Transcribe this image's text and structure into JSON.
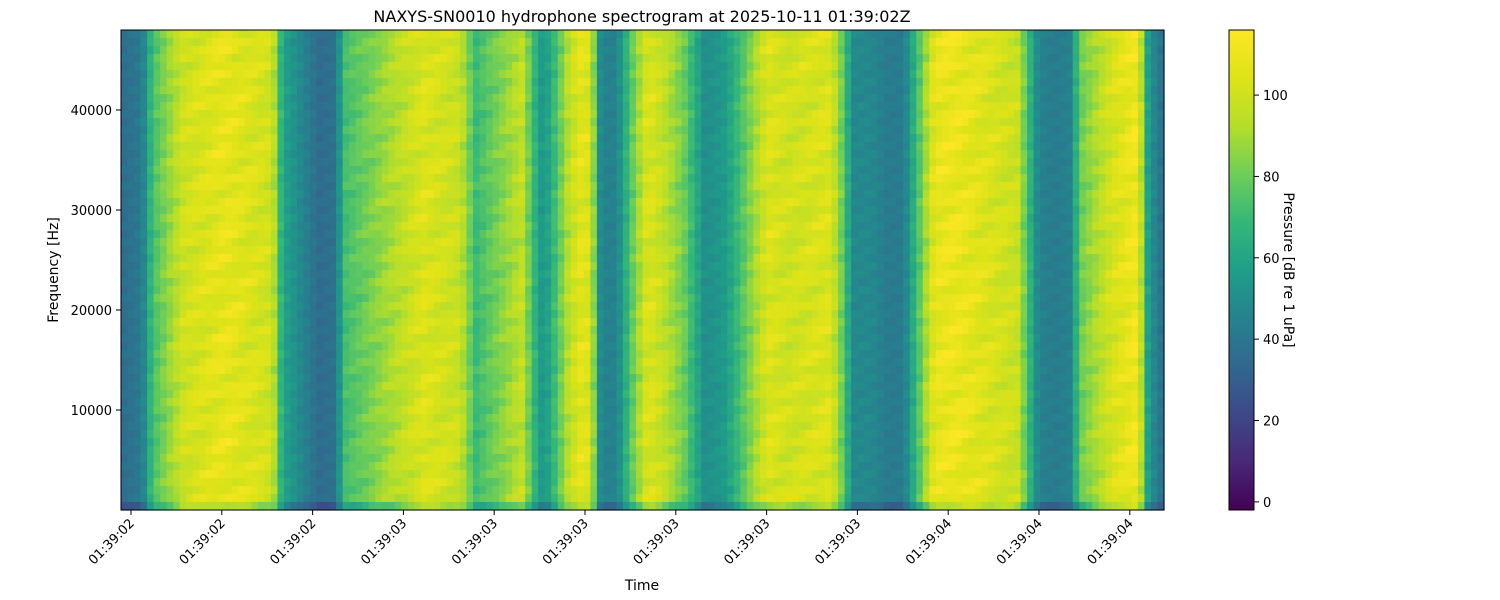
{
  "chart_data": {
    "type": "heatmap",
    "title": "NAXYS-SN0010 hydrophone spectrogram at 2025-10-11 01:39:02Z",
    "xlabel": "Time",
    "ylabel": "Frequency [Hz]",
    "colorbar_label": "Pressure [dB re 1 uPa]",
    "colormap": "viridis",
    "ylim": [
      0,
      48000
    ],
    "y_ticks": [
      10000,
      20000,
      30000,
      40000
    ],
    "x_tick_labels": [
      "01:39:02",
      "01:39:02",
      "01:39:02",
      "01:39:03",
      "01:39:03",
      "01:39:03",
      "01:39:03",
      "01:39:03",
      "01:39:03",
      "01:39:04",
      "01:39:04",
      "01:39:04"
    ],
    "clim": [
      -2,
      116
    ],
    "colorbar_ticks": [
      0,
      20,
      40,
      60,
      80,
      100
    ],
    "column_profile": {
      "description": "approximate mean level (dB) per time position, 0 = left edge, 1 = right edge",
      "t": [
        0.0,
        0.02,
        0.03,
        0.06,
        0.1,
        0.145,
        0.155,
        0.19,
        0.205,
        0.215,
        0.29,
        0.325,
        0.34,
        0.385,
        0.395,
        0.405,
        0.41,
        0.43,
        0.445,
        0.455,
        0.46,
        0.475,
        0.49,
        0.505,
        0.52,
        0.54,
        0.56,
        0.58,
        0.62,
        0.64,
        0.66,
        0.68,
        0.695,
        0.7,
        0.72,
        0.735,
        0.75,
        0.76,
        0.78,
        0.8,
        0.86,
        0.87,
        0.88,
        0.895,
        0.91,
        0.92,
        0.95,
        0.975,
        0.985,
        1.0
      ],
      "level": [
        35,
        42,
        72,
        100,
        108,
        100,
        60,
        35,
        38,
        72,
        104,
        98,
        70,
        96,
        70,
        52,
        60,
        96,
        110,
        80,
        45,
        45,
        78,
        105,
        96,
        80,
        50,
        56,
        104,
        100,
        102,
        104,
        72,
        48,
        48,
        42,
        42,
        64,
        108,
        110,
        98,
        70,
        45,
        42,
        45,
        80,
        102,
        112,
        55,
        35
      ]
    }
  }
}
